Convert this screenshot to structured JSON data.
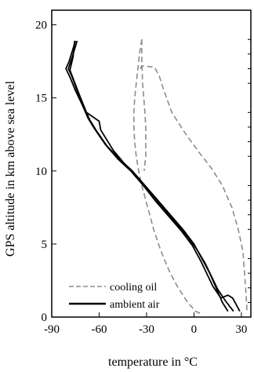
{
  "chart_data": {
    "type": "line",
    "xlabel": "temperature in °C",
    "ylabel": "GPS altitude in km above sea level",
    "xlim": [
      -90,
      36
    ],
    "ylim": [
      0,
      21
    ],
    "x_ticks": [
      -90,
      -60,
      -30,
      0,
      30
    ],
    "x_tick_labels": [
      "-90",
      "-60",
      "-30",
      "0",
      "30"
    ],
    "y_ticks": [
      0,
      5,
      10,
      15,
      20
    ],
    "y_tick_labels": [
      "0",
      "5",
      "10",
      "15",
      "20"
    ],
    "grid": false,
    "legend_position": "bottom-left",
    "series": [
      {
        "name": "cooling oil",
        "color": "#8c8c8c",
        "style": "dashed",
        "paths": [
          [
            [
              -33,
              19
            ],
            [
              -34.5,
              18
            ],
            [
              -35.5,
              17
            ],
            [
              -36.5,
              16
            ],
            [
              -37.5,
              15
            ],
            [
              -38,
              14
            ],
            [
              -38,
              13
            ],
            [
              -37.5,
              12
            ],
            [
              -36.5,
              11
            ],
            [
              -35,
              10
            ],
            [
              -33,
              9
            ],
            [
              -30.5,
              8
            ],
            [
              -28,
              7
            ],
            [
              -25.5,
              6
            ],
            [
              -22.5,
              5
            ],
            [
              -19,
              4
            ],
            [
              -15,
              3
            ],
            [
              -10,
              2
            ],
            [
              -4,
              1
            ],
            [
              1,
              0.4
            ],
            [
              5,
              0.2
            ]
          ],
          [
            [
              -33,
              19
            ],
            [
              -33,
              17.5
            ],
            [
              -32.5,
              16
            ],
            [
              -31,
              14
            ],
            [
              -30.5,
              13
            ],
            [
              -30.5,
              11
            ],
            [
              -31.5,
              10
            ]
          ],
          [
            [
              -34,
              17
            ],
            [
              -33,
              17.2
            ],
            [
              -25,
              17.1
            ],
            [
              -22,
              16.5
            ],
            [
              -19,
              15.5
            ],
            [
              -14,
              14
            ],
            [
              -5,
              12.5
            ],
            [
              3,
              11.3
            ],
            [
              11,
              10.2
            ],
            [
              18,
              9
            ],
            [
              24,
              7.5
            ],
            [
              28,
              6
            ],
            [
              31,
              4.5
            ],
            [
              32,
              3
            ],
            [
              33,
              1.5
            ],
            [
              33.5,
              0.4
            ]
          ]
        ]
      },
      {
        "name": "ambient air",
        "color": "#000000",
        "style": "solid",
        "paths": [
          [
            [
              -74,
              18.9
            ],
            [
              -77,
              17.8
            ],
            [
              -79.5,
              17
            ],
            [
              -77,
              16.4
            ],
            [
              -74,
              15.5
            ],
            [
              -70,
              14.5
            ],
            [
              -66,
              13.5
            ],
            [
              -62,
              12.8
            ],
            [
              -55,
              11.7
            ],
            [
              -47,
              10.8
            ],
            [
              -39,
              10
            ],
            [
              -31,
              9
            ],
            [
              -23,
              8
            ],
            [
              -15,
              7
            ],
            [
              -7,
              6
            ],
            [
              0,
              5
            ],
            [
              5,
              4
            ],
            [
              10,
              3
            ],
            [
              14,
              2
            ],
            [
              18,
              1
            ],
            [
              21.5,
              0.4
            ]
          ],
          [
            [
              -75,
              18.9
            ],
            [
              -79,
              17.5
            ],
            [
              -81,
              17
            ],
            [
              -78,
              16.3
            ],
            [
              -75,
              15.5
            ],
            [
              -71,
              14.6
            ],
            [
              -67,
              13.6
            ],
            [
              -63,
              12.9
            ],
            [
              -56,
              11.8
            ],
            [
              -48,
              10.8
            ],
            [
              -40,
              10
            ],
            [
              -32,
              9
            ],
            [
              -24,
              7.9
            ],
            [
              -16,
              6.9
            ],
            [
              -8,
              5.9
            ],
            [
              -1,
              4.9
            ],
            [
              4,
              3.9
            ],
            [
              8,
              3
            ],
            [
              12,
              2.1
            ],
            [
              17,
              1.3
            ],
            [
              21.5,
              1.5
            ],
            [
              24.5,
              1.3
            ],
            [
              29,
              0.4
            ]
          ],
          [
            [
              -75.5,
              18.9
            ],
            [
              -76.5,
              17.8
            ],
            [
              -78.5,
              16.9
            ],
            [
              -76,
              16.2
            ],
            [
              -72.5,
              15.2
            ],
            [
              -68,
              14
            ],
            [
              -60,
              13.4
            ],
            [
              -59,
              12.8
            ],
            [
              -51,
              11.4
            ],
            [
              -44,
              10.5
            ],
            [
              -36,
              9.6
            ],
            [
              -28,
              8.6
            ],
            [
              -20,
              7.5
            ],
            [
              -12,
              6.5
            ],
            [
              -4,
              5.5
            ],
            [
              2,
              4.6
            ],
            [
              7,
              3.7
            ],
            [
              11,
              2.8
            ],
            [
              15,
              1.9
            ],
            [
              20,
              1.1
            ],
            [
              25,
              0.4
            ]
          ]
        ]
      }
    ]
  }
}
